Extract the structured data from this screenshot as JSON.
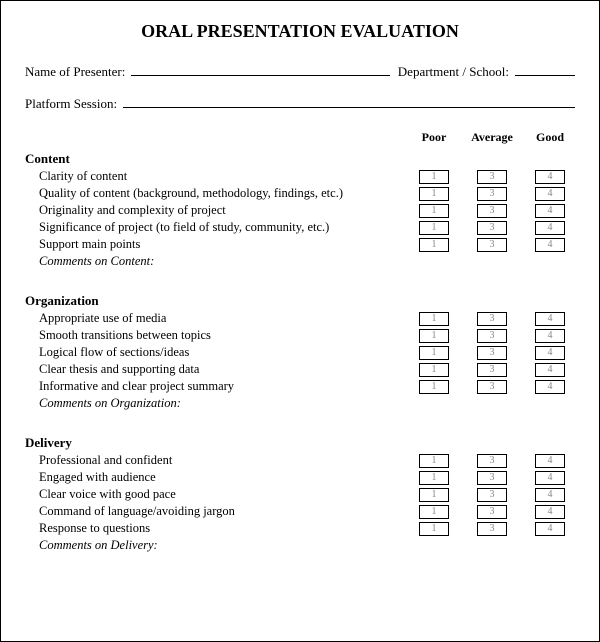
{
  "title": "ORAL PRESENTATION EVALUATION",
  "header": {
    "presenter_label": "Name of Presenter:",
    "department_label": "Department / School:",
    "platform_label": "Platform Session:"
  },
  "rating_labels": {
    "poor": "Poor",
    "average": "Average",
    "good": "Good"
  },
  "rating_values": {
    "poor": "1",
    "average": "3",
    "good": "4"
  },
  "sections": {
    "content": {
      "title": "Content",
      "items": [
        "Clarity of content",
        "Quality of content (background, methodology, findings, etc.)",
        "Originality and complexity of project",
        "Significance of project (to field of study, community, etc.)",
        "Support main points"
      ],
      "comments_label": "Comments on Content:"
    },
    "organization": {
      "title": "Organization",
      "items": [
        "Appropriate use of media",
        "Smooth transitions between topics",
        "Logical flow of sections/ideas",
        "Clear thesis and supporting data",
        "Informative and clear project summary"
      ],
      "comments_label": "Comments on Organization:"
    },
    "delivery": {
      "title": "Delivery",
      "items": [
        "Professional and confident",
        "Engaged with audience",
        "Clear voice with good pace",
        "Command of language/avoiding jargon",
        "Response to questions"
      ],
      "comments_label": "Comments on Delivery:"
    }
  }
}
